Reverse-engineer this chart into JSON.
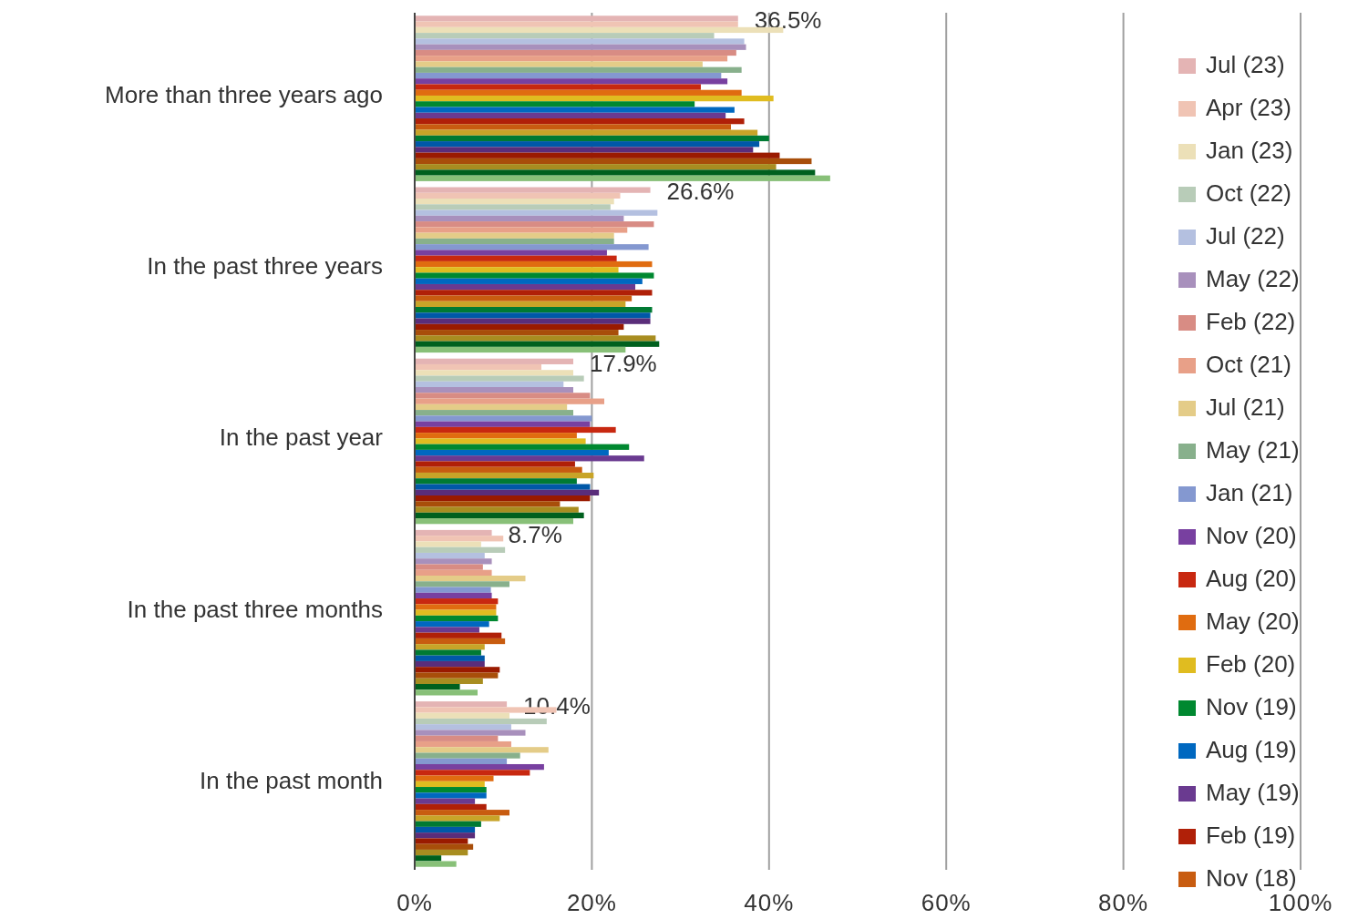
{
  "chart_data": {
    "type": "bar",
    "orientation": "horizontal",
    "categories": [
      "More than three years ago",
      "In the past three years",
      "In the past year",
      "In the past three months",
      "In the past month"
    ],
    "xlim": [
      0,
      100
    ],
    "xticks": [
      {
        "value": 0,
        "label": "0%"
      },
      {
        "value": 20,
        "label": "20%"
      },
      {
        "value": 40,
        "label": "40%"
      },
      {
        "value": 60,
        "label": "60%"
      },
      {
        "value": 80,
        "label": "80%"
      },
      {
        "value": 100,
        "label": "100%"
      }
    ],
    "grid": "x",
    "legend": "right",
    "series": [
      {
        "name": "Jul (23)",
        "color": "#e4b4b4",
        "values": [
          36.5,
          26.6,
          17.9,
          8.7,
          10.4
        ],
        "value_labels": [
          "36.5%",
          "26.6%",
          "17.9%",
          "8.7%",
          "10.4%"
        ]
      },
      {
        "name": "Apr (23)",
        "color": "#f0c4b4",
        "values": [
          36.5,
          23.2,
          14.3,
          10.0,
          16.0
        ]
      },
      {
        "name": "Jan (23)",
        "color": "#ece0b8",
        "values": [
          41.6,
          22.5,
          17.9,
          7.5,
          10.7
        ]
      },
      {
        "name": "Oct (22)",
        "color": "#b8ccb8",
        "values": [
          33.8,
          22.1,
          19.1,
          10.2,
          14.9
        ]
      },
      {
        "name": "Jul (22)",
        "color": "#b4c0e0",
        "values": [
          37.2,
          27.4,
          16.8,
          7.9,
          10.9
        ]
      },
      {
        "name": "May (22)",
        "color": "#a890bc",
        "values": [
          37.4,
          23.6,
          17.9,
          8.7,
          12.5
        ]
      },
      {
        "name": "Feb (22)",
        "color": "#d88c84",
        "values": [
          36.3,
          27.0,
          19.8,
          7.7,
          9.4
        ]
      },
      {
        "name": "Oct (21)",
        "color": "#e8a088",
        "values": [
          35.3,
          24.0,
          21.4,
          8.7,
          10.9
        ]
      },
      {
        "name": "Jul (21)",
        "color": "#e4cc88",
        "values": [
          32.5,
          22.5,
          17.2,
          12.5,
          15.1
        ]
      },
      {
        "name": "May (21)",
        "color": "#88b08c",
        "values": [
          36.9,
          22.5,
          17.9,
          10.7,
          11.9
        ]
      },
      {
        "name": "Jan (21)",
        "color": "#8498d0",
        "values": [
          34.6,
          26.4,
          20.0,
          8.6,
          10.4
        ]
      },
      {
        "name": "Nov (20)",
        "color": "#7840a0",
        "values": [
          35.3,
          21.7,
          19.8,
          8.7,
          14.6
        ]
      },
      {
        "name": "Aug (20)",
        "color": "#c82810",
        "values": [
          32.3,
          22.8,
          22.7,
          9.4,
          13.0
        ]
      },
      {
        "name": "May (20)",
        "color": "#e06c10",
        "values": [
          36.9,
          26.8,
          18.3,
          9.2,
          8.9
        ]
      },
      {
        "name": "Feb (20)",
        "color": "#e0bc20",
        "values": [
          40.5,
          23.0,
          19.3,
          9.2,
          7.9
        ]
      },
      {
        "name": "Nov (19)",
        "color": "#008830",
        "values": [
          31.6,
          27.0,
          24.2,
          9.4,
          8.1
        ]
      },
      {
        "name": "Aug (19)",
        "color": "#0068c0",
        "values": [
          36.1,
          25.7,
          21.9,
          8.4,
          8.1
        ]
      },
      {
        "name": "May (19)",
        "color": "#6a3a90",
        "values": [
          35.1,
          24.9,
          25.9,
          7.3,
          6.8
        ]
      },
      {
        "name": "Feb (19)",
        "color": "#b02008",
        "values": [
          37.2,
          26.8,
          18.1,
          9.8,
          8.1
        ]
      },
      {
        "name": "Nov (18)",
        "color": "#c85c10",
        "values": [
          35.7,
          24.5,
          18.9,
          10.2,
          10.7
        ]
      },
      {
        "color": "#c8a428",
        "values": [
          38.7,
          23.8,
          20.2,
          7.9,
          9.6
        ]
      },
      {
        "color": "#007a33",
        "values": [
          40.0,
          26.8,
          18.3,
          7.5,
          7.5
        ]
      },
      {
        "color": "#0058a8",
        "values": [
          38.9,
          26.6,
          19.8,
          7.9,
          6.8
        ]
      },
      {
        "color": "#5a2d7a",
        "values": [
          38.2,
          26.6,
          20.8,
          7.9,
          6.8
        ]
      },
      {
        "color": "#9a1a00",
        "values": [
          41.2,
          23.6,
          19.8,
          9.6,
          6.0
        ]
      },
      {
        "color": "#a84e0a",
        "values": [
          44.8,
          23.0,
          16.4,
          9.4,
          6.6
        ]
      },
      {
        "color": "#a88d20",
        "values": [
          40.8,
          27.2,
          18.5,
          7.7,
          6.0
        ]
      },
      {
        "color": "#00601e",
        "values": [
          45.2,
          27.6,
          19.1,
          5.1,
          3.0
        ]
      },
      {
        "color": "#88c078",
        "values": [
          46.9,
          23.8,
          17.9,
          7.1,
          4.7
        ]
      }
    ]
  }
}
